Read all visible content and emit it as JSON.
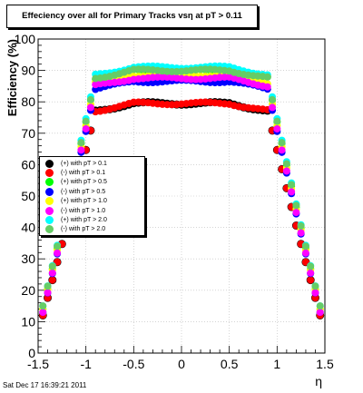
{
  "title": "Effeciency over all for Primary Tracks vsη at pT > 0.11",
  "timestamp": "Sat Dec 17 16:39:21 2011",
  "chart_data": {
    "type": "scatter",
    "xlabel": "η",
    "ylabel": "Efficiency (%)",
    "xlim": [
      -1.5,
      1.5
    ],
    "ylim": [
      0,
      100
    ],
    "xticks": [
      -1.5,
      -1,
      -0.5,
      0,
      0.5,
      1,
      1.5
    ],
    "xtick_labels": [
      "-1.5",
      "-1",
      "-0.5",
      "0",
      "0.5",
      "1",
      "1.5"
    ],
    "yticks": [
      0,
      10,
      20,
      30,
      40,
      50,
      60,
      70,
      80,
      90,
      100
    ],
    "ytick_labels": [
      "0",
      "10",
      "20",
      "30",
      "40",
      "50",
      "60",
      "70",
      "80",
      "90",
      "100"
    ],
    "grid": true,
    "legend_position": "left-middle",
    "series": [
      {
        "name": "(+) with pT > 0.1",
        "color": "#000000",
        "plateau": 79.5,
        "edge": 12
      },
      {
        "name": "(-) with pT > 0.1",
        "color": "#ff0000",
        "plateau": 79.5,
        "edge": 12
      },
      {
        "name": "(+) with pT > 0.5",
        "color": "#00ff00",
        "plateau": 90.0,
        "edge": 14
      },
      {
        "name": "(-) with pT > 0.5",
        "color": "#0000ff",
        "plateau": 86.5,
        "edge": 13
      },
      {
        "name": "(+) with pT > 1.0",
        "color": "#ffff00",
        "plateau": 88.5,
        "edge": 14
      },
      {
        "name": "(-) with pT > 1.0",
        "color": "#ff00ff",
        "plateau": 87.5,
        "edge": 13
      },
      {
        "name": "(+) with pT > 2.0",
        "color": "#00ffff",
        "plateau": 91.0,
        "edge": 15
      },
      {
        "name": "(-) with pT > 2.0",
        "color": "#66cc66",
        "plateau": 90.0,
        "edge": 15
      }
    ]
  }
}
